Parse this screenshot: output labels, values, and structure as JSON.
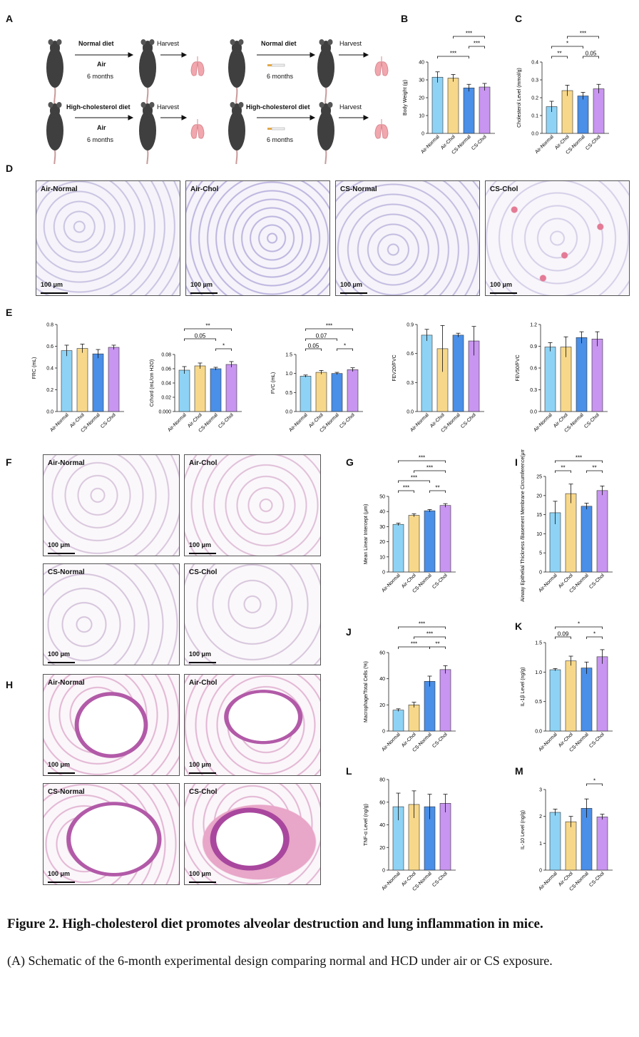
{
  "panel_labels": {
    "A": "A",
    "B": "B",
    "C": "C",
    "D": "D",
    "E": "E",
    "F": "F",
    "G": "G",
    "H": "H",
    "I": "I",
    "J": "J",
    "K": "K",
    "L": "L",
    "M": "M"
  },
  "schematic": {
    "rows": [
      {
        "diet": "Normal diet",
        "exposure": "Air",
        "duration": "6 months",
        "harvest": "Harvest"
      },
      {
        "diet": "Normal diet",
        "exposure": "",
        "duration": "6 months",
        "harvest": "Harvest"
      },
      {
        "diet": "High-cholesterol diet",
        "exposure": "Air",
        "duration": "6 months",
        "harvest": "Harvest"
      },
      {
        "diet": "High-cholesterol diet",
        "exposure": "",
        "duration": "6 months",
        "harvest": "Harvest"
      }
    ]
  },
  "groups": [
    "Air-Normal",
    "Air-Chol",
    "CS-Normal",
    "CS-Chol"
  ],
  "colors": {
    "air_normal": "#8ed3f5",
    "air_chol": "#f7d88a",
    "cs_normal": "#4a8fe8",
    "cs_chol": "#c895f0"
  },
  "micro_D": [
    "Air-Normal",
    "Air-Chol",
    "CS-Normal",
    "CS-Chol"
  ],
  "micro_F": [
    "Air-Normal",
    "Air-Chol",
    "CS-Normal",
    "CS-Chol"
  ],
  "micro_H": [
    "Air-Normal",
    "Air-Chol",
    "CS-Normal",
    "CS-Chol"
  ],
  "scale_label": "100 μm",
  "chart_data": [
    {
      "id": "B",
      "type": "bar",
      "ylabel": "Body Weight (g)",
      "ylim": [
        0,
        40
      ],
      "ticks": [
        "0",
        "10",
        "20",
        "30",
        "40"
      ],
      "values": [
        31.5,
        31,
        25.5,
        26
      ],
      "err": [
        3,
        2,
        2,
        2
      ],
      "sig": [
        {
          "a": 0,
          "b": 2,
          "t": "***",
          "lvl": 0
        },
        {
          "a": 2,
          "b": 3,
          "t": "***",
          "lvl": 1
        },
        {
          "a": 1,
          "b": 3,
          "t": "***",
          "lvl": 2
        }
      ]
    },
    {
      "id": "C",
      "type": "bar",
      "ylabel": "Cholesterol Level (mmol/g)",
      "ylim": [
        0,
        0.4
      ],
      "ticks": [
        "0.0",
        "0.1",
        "0.2",
        "0.3",
        "0.4"
      ],
      "values": [
        0.15,
        0.24,
        0.21,
        0.25
      ],
      "err": [
        0.03,
        0.03,
        0.02,
        0.025
      ],
      "sig": [
        {
          "a": 0,
          "b": 1,
          "t": "**",
          "lvl": 0
        },
        {
          "a": 2,
          "b": 3,
          "t": "0.05",
          "lvl": 0
        },
        {
          "a": 0,
          "b": 2,
          "t": "*",
          "lvl": 1
        },
        {
          "a": 1,
          "b": 3,
          "t": "***",
          "lvl": 2
        }
      ]
    },
    {
      "id": "E1",
      "type": "bar",
      "ylabel": "FRC (mL)",
      "ylim": [
        0,
        0.8
      ],
      "ticks": [
        "0.0",
        "0.2",
        "0.4",
        "0.6",
        "0.8"
      ],
      "values": [
        0.56,
        0.58,
        0.53,
        0.59
      ],
      "err": [
        0.05,
        0.04,
        0.04,
        0.02
      ],
      "sig": []
    },
    {
      "id": "E2",
      "type": "bar",
      "ylabel": "Cchord (mL/cm H2O)",
      "ylim": [
        0,
        0.08
      ],
      "ticks": [
        "0.000",
        "0.02",
        "0.04",
        "0.06",
        "0.08"
      ],
      "values": [
        0.058,
        0.064,
        0.06,
        0.066
      ],
      "err": [
        0.005,
        0.004,
        0.002,
        0.004
      ],
      "sig": [
        {
          "a": 2,
          "b": 3,
          "t": "*",
          "lvl": 0
        },
        {
          "a": 0,
          "b": 2,
          "t": "0.05",
          "lvl": 1
        },
        {
          "a": 0,
          "b": 3,
          "t": "**",
          "lvl": 2
        }
      ]
    },
    {
      "id": "E3",
      "type": "bar",
      "ylabel": "FVC (mL)",
      "ylim": [
        0,
        1.5
      ],
      "ticks": [
        "0.0",
        "0.5",
        "1.0",
        "1.5"
      ],
      "values": [
        0.93,
        1.03,
        1.0,
        1.1
      ],
      "err": [
        0.03,
        0.05,
        0.03,
        0.05
      ],
      "sig": [
        {
          "a": 2,
          "b": 3,
          "t": "*",
          "lvl": 0
        },
        {
          "a": 0,
          "b": 1,
          "t": "0.05",
          "lvl": 0
        },
        {
          "a": 0,
          "b": 2,
          "t": "0.07",
          "lvl": 1
        },
        {
          "a": 0,
          "b": 3,
          "t": "***",
          "lvl": 2
        }
      ]
    },
    {
      "id": "E4",
      "type": "bar",
      "ylabel": "FEV20/FVC",
      "ylim": [
        0,
        0.9
      ],
      "ticks": [
        "0.0",
        "0.3",
        "0.6",
        "0.9"
      ],
      "values": [
        0.79,
        0.65,
        0.79,
        0.73
      ],
      "err": [
        0.06,
        0.24,
        0.02,
        0.15
      ],
      "sig": []
    },
    {
      "id": "E5",
      "type": "bar",
      "ylabel": "FEV50/FVC",
      "ylim": [
        0,
        1.2
      ],
      "ticks": [
        "0.0",
        "0.3",
        "0.6",
        "0.9",
        "1.2"
      ],
      "values": [
        0.89,
        0.89,
        1.02,
        1.0
      ],
      "err": [
        0.06,
        0.14,
        0.08,
        0.1
      ],
      "sig": []
    },
    {
      "id": "G",
      "type": "bar",
      "ylabel": "Mean Linear Intercept (μm)",
      "ylim": [
        0,
        50
      ],
      "ticks": [
        "0",
        "10",
        "20",
        "30",
        "40",
        "50"
      ],
      "values": [
        31.5,
        37.5,
        40.5,
        44
      ],
      "err": [
        0.8,
        1,
        0.8,
        1.2
      ],
      "sig": [
        {
          "a": 0,
          "b": 1,
          "t": "***",
          "lvl": 0
        },
        {
          "a": 2,
          "b": 3,
          "t": "**",
          "lvl": 0
        },
        {
          "a": 0,
          "b": 2,
          "t": "***",
          "lvl": 1
        },
        {
          "a": 1,
          "b": 3,
          "t": "***",
          "lvl": 2
        },
        {
          "a": 0,
          "b": 3,
          "t": "***",
          "lvl": 3
        }
      ]
    },
    {
      "id": "I",
      "type": "bar",
      "ylabel": "Airway Epithelial Thickness /Basement Membrane Circumference(μm)",
      "ylim": [
        0,
        25
      ],
      "ticks": [
        "0",
        "5",
        "10",
        "15",
        "20",
        "25"
      ],
      "values": [
        15.5,
        20.5,
        17.2,
        21.3
      ],
      "err": [
        3,
        2.5,
        0.8,
        1.2
      ],
      "sig": [
        {
          "a": 0,
          "b": 1,
          "t": "**",
          "lvl": 0
        },
        {
          "a": 2,
          "b": 3,
          "t": "**",
          "lvl": 0
        },
        {
          "a": 0,
          "b": 3,
          "t": "***",
          "lvl": 1
        }
      ]
    },
    {
      "id": "J",
      "type": "bar",
      "ylabel": "Macrophage/Total Cells (%)",
      "ylim": [
        0,
        60
      ],
      "ticks": [
        "0",
        "20",
        "40",
        "60"
      ],
      "values": [
        16,
        20,
        38,
        47
      ],
      "err": [
        1,
        2,
        4,
        3
      ],
      "sig": [
        {
          "a": 2,
          "b": 3,
          "t": "**",
          "lvl": 0
        },
        {
          "a": 1,
          "b": 3,
          "t": "***",
          "lvl": 1
        },
        {
          "a": 0,
          "b": 2,
          "t": "***",
          "lvl": 0
        },
        {
          "a": 0,
          "b": 3,
          "t": "***",
          "lvl": 2
        }
      ]
    },
    {
      "id": "K",
      "type": "bar",
      "ylabel": "IL-1β Level (ng/g)",
      "ylim": [
        0,
        1.5
      ],
      "ticks": [
        "0.0",
        "0.5",
        "1.0",
        "1.5"
      ],
      "values": [
        1.04,
        1.19,
        1.07,
        1.26
      ],
      "err": [
        0.02,
        0.08,
        0.1,
        0.12
      ],
      "sig": [
        {
          "a": 0,
          "b": 1,
          "t": "0.09",
          "lvl": 0
        },
        {
          "a": 2,
          "b": 3,
          "t": "*",
          "lvl": 0
        },
        {
          "a": 0,
          "b": 3,
          "t": "*",
          "lvl": 1
        }
      ]
    },
    {
      "id": "L",
      "type": "bar",
      "ylabel": "TNF-α Level (ng/g)",
      "ylim": [
        0,
        80
      ],
      "ticks": [
        "0",
        "20",
        "40",
        "60",
        "80"
      ],
      "values": [
        56,
        58,
        56,
        59
      ],
      "err": [
        12,
        12,
        11,
        8
      ],
      "sig": []
    },
    {
      "id": "M",
      "type": "bar",
      "ylabel": "IL-10 Level (ng/g)",
      "ylim": [
        0,
        3
      ],
      "ticks": [
        "0",
        "1",
        "2",
        "3"
      ],
      "values": [
        2.15,
        1.8,
        2.3,
        1.98
      ],
      "err": [
        0.12,
        0.2,
        0.35,
        0.1
      ],
      "sig": [
        {
          "a": 2,
          "b": 3,
          "t": "*",
          "lvl": 0
        }
      ]
    }
  ],
  "caption": {
    "title": "Figure 2. High-cholesterol diet promotes alveolar destruction and lung inflammation in mice.",
    "body": "(A) Schematic of the 6-month experimental design comparing normal and HCD under air or CS exposure."
  }
}
